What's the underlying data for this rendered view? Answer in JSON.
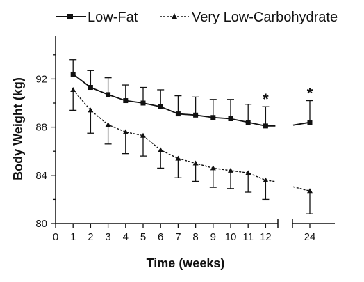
{
  "chart_data": {
    "type": "line",
    "title": "",
    "xlabel": "Time (weeks)",
    "ylabel": "Body Weight (kg)",
    "x_ticks": [
      "0",
      "1",
      "2",
      "3",
      "4",
      "5",
      "6",
      "7",
      "8",
      "9",
      "10",
      "11",
      "12",
      "24"
    ],
    "y_ticks": [
      "80",
      "84",
      "88",
      "92"
    ],
    "ylim": [
      80,
      95
    ],
    "axis_break": "between 12 and 24 weeks",
    "legend_position": "top",
    "significance_marker": "*",
    "significant_weeks": [
      12,
      24
    ],
    "series": [
      {
        "name": "Low-Fat",
        "marker": "square",
        "line_style": "solid",
        "x": [
          1,
          2,
          3,
          4,
          5,
          6,
          7,
          8,
          9,
          10,
          11,
          12,
          24
        ],
        "values": [
          92.4,
          91.3,
          90.7,
          90.2,
          90.0,
          89.7,
          89.1,
          89.0,
          88.8,
          88.7,
          88.4,
          88.1,
          88.4
        ],
        "error_upper": [
          93.6,
          92.7,
          92.1,
          91.5,
          91.3,
          91.1,
          90.6,
          90.5,
          90.3,
          90.3,
          89.9,
          89.7,
          90.2
        ]
      },
      {
        "name": "Very Low-Carbohydrate",
        "marker": "triangle",
        "line_style": "dashed",
        "x": [
          1,
          2,
          3,
          4,
          5,
          6,
          7,
          8,
          9,
          10,
          11,
          12,
          24
        ],
        "values": [
          91.1,
          89.4,
          88.2,
          87.6,
          87.3,
          86.1,
          85.4,
          85.0,
          84.6,
          84.4,
          84.2,
          83.6,
          82.7
        ],
        "error_lower": [
          89.4,
          87.5,
          86.6,
          85.8,
          85.6,
          84.6,
          83.8,
          83.5,
          83.0,
          82.9,
          82.6,
          82.0,
          80.8
        ]
      }
    ]
  }
}
